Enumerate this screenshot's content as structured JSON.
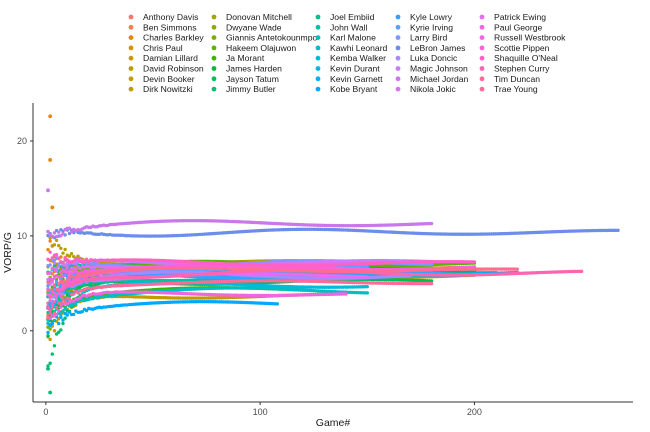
{
  "chart_data": {
    "type": "scatter",
    "xlabel": "Game#",
    "ylabel": "VORP/G",
    "xlim": [
      -6,
      274
    ],
    "ylim": [
      -7.5,
      24
    ],
    "x_ticks": [
      0,
      100,
      200
    ],
    "y_ticks": [
      0,
      10,
      20
    ],
    "x_tick_labels": [
      "0",
      "100",
      "200"
    ],
    "y_tick_labels": [
      "0",
      "10",
      "20"
    ],
    "grid": false,
    "legend_position": "top",
    "series": [
      {
        "name": "Anthony Davis",
        "color": "#F8766D",
        "games": 180,
        "start": 3.0,
        "final": 6.4
      },
      {
        "name": "Ben Simmons",
        "color": "#F17E4E",
        "games": 150,
        "start": 5.0,
        "final": 6.8
      },
      {
        "name": "Charles Barkley",
        "color": "#E58700",
        "games": 210,
        "start": 9.5,
        "final": 6.0
      },
      {
        "name": "Chris Paul",
        "color": "#D89000",
        "games": 200,
        "start": 7.0,
        "final": 6.7
      },
      {
        "name": "Damian Lillard",
        "color": "#C99800",
        "games": 170,
        "start": 4.0,
        "final": 6.3
      },
      {
        "name": "David Robinson",
        "color": "#B79F00",
        "games": 150,
        "start": 10.0,
        "final": 7.2
      },
      {
        "name": "Devin Booker",
        "color": "#C49A00",
        "games": 140,
        "start": -1.0,
        "final": 3.7
      },
      {
        "name": "Dirk Nowitzki",
        "color": "#B79F00",
        "games": 200,
        "start": 2.0,
        "final": 5.8
      },
      {
        "name": "Donovan Mitchell",
        "color": "#A3A500",
        "games": 150,
        "start": 3.0,
        "final": 6.2
      },
      {
        "name": "Dwyane Wade",
        "color": "#8FAA00",
        "games": 180,
        "start": 6.0,
        "final": 6.9
      },
      {
        "name": "Giannis Antetokounmpo",
        "color": "#7CAE00",
        "games": 180,
        "start": 0.0,
        "final": 6.6
      },
      {
        "name": "Hakeem Olajuwon",
        "color": "#5BB300",
        "games": 200,
        "start": 5.0,
        "final": 7.0
      },
      {
        "name": "Ja Morant",
        "color": "#39B600",
        "games": 120,
        "start": 1.0,
        "final": 4.3
      },
      {
        "name": "James Harden",
        "color": "#00BA38",
        "games": 200,
        "start": 1.0,
        "final": 6.5
      },
      {
        "name": "Jayson Tatum",
        "color": "#00BC59",
        "games": 180,
        "start": 0.0,
        "final": 5.2
      },
      {
        "name": "Jimmy Butler",
        "color": "#00BE70",
        "games": 150,
        "start": -4.0,
        "final": 5.6
      },
      {
        "name": "Joel Embiid",
        "color": "#00C08B",
        "games": 140,
        "start": 6.0,
        "final": 6.9
      },
      {
        "name": "John Wall",
        "color": "#00C1A3",
        "games": 150,
        "start": 2.0,
        "final": 5.5
      },
      {
        "name": "Karl Malone",
        "color": "#00C0B8",
        "games": 200,
        "start": 4.0,
        "final": 6.0
      },
      {
        "name": "Kawhi Leonard",
        "color": "#00BFC4",
        "games": 150,
        "start": 1.0,
        "final": 4.2
      },
      {
        "name": "Kemba Walker",
        "color": "#00BCD8",
        "games": 150,
        "start": 2.0,
        "final": 4.8
      },
      {
        "name": "Kevin Durant",
        "color": "#00B8E7",
        "games": 180,
        "start": 2.0,
        "final": 6.2
      },
      {
        "name": "Kevin Garnett",
        "color": "#00B0F6",
        "games": 220,
        "start": 2.0,
        "final": 6.1
      },
      {
        "name": "Kobe Bryant",
        "color": "#00A9FF",
        "games": 108,
        "start": 0.5,
        "final": 2.8
      },
      {
        "name": "Kyle Lowry",
        "color": "#35A2FF",
        "games": 200,
        "start": 3.0,
        "final": 5.9
      },
      {
        "name": "Kyrie Irving",
        "color": "#619CFF",
        "games": 150,
        "start": 4.0,
        "final": 6.6
      },
      {
        "name": "Larry Bird",
        "color": "#7F96FF",
        "games": 180,
        "start": 7.0,
        "final": 7.1
      },
      {
        "name": "LeBron James",
        "color": "#6C8DEB",
        "games": 267,
        "start": 10.0,
        "final": 10.4
      },
      {
        "name": "Luka Doncic",
        "color": "#A58AFF",
        "games": 170,
        "start": 3.0,
        "final": 5.8
      },
      {
        "name": "Magic Johnson",
        "color": "#C77CFF",
        "games": 180,
        "start": 6.0,
        "final": 7.2
      },
      {
        "name": "Michael Jordan",
        "color": "#C878E8",
        "games": 180,
        "start": 10.0,
        "final": 11.3
      },
      {
        "name": "Nikola Jokic",
        "color": "#D973F0",
        "games": 150,
        "start": 5.0,
        "final": 6.9
      },
      {
        "name": "Patrick Ewing",
        "color": "#E76BF3",
        "games": 150,
        "start": 4.0,
        "final": 5.8
      },
      {
        "name": "Paul George",
        "color": "#F066DF",
        "games": 140,
        "start": 1.0,
        "final": 3.9
      },
      {
        "name": "Russell Westbrook",
        "color": "#F564E3",
        "games": 200,
        "start": 3.0,
        "final": 6.7
      },
      {
        "name": "Scottie Pippen",
        "color": "#FA62DB",
        "games": 150,
        "start": 6.0,
        "final": 6.6
      },
      {
        "name": "Shaquille O'Neal",
        "color": "#FF61C3",
        "games": 200,
        "start": 8.0,
        "final": 7.1
      },
      {
        "name": "Stephen Curry",
        "color": "#FF64B0",
        "games": 250,
        "start": 2.0,
        "final": 6.1
      },
      {
        "name": "Tim Duncan",
        "color": "#FF6C91",
        "games": 220,
        "start": 4.0,
        "final": 6.4
      },
      {
        "name": "Trae Young",
        "color": "#FF6A98",
        "games": 180,
        "start": 1.0,
        "final": 5.1
      }
    ],
    "early_outliers": [
      {
        "series": "Charles Barkley",
        "x": 2,
        "y": 22.6
      },
      {
        "series": "Charles Barkley",
        "x": 2,
        "y": 18.0
      },
      {
        "series": "Charles Barkley",
        "x": 3,
        "y": 13.0
      },
      {
        "series": "Michael Jordan",
        "x": 1,
        "y": 14.8
      },
      {
        "series": "Jimmy Butler",
        "x": 2,
        "y": -6.5
      },
      {
        "series": "Jimmy Butler",
        "x": 1,
        "y": -4.0
      }
    ]
  }
}
